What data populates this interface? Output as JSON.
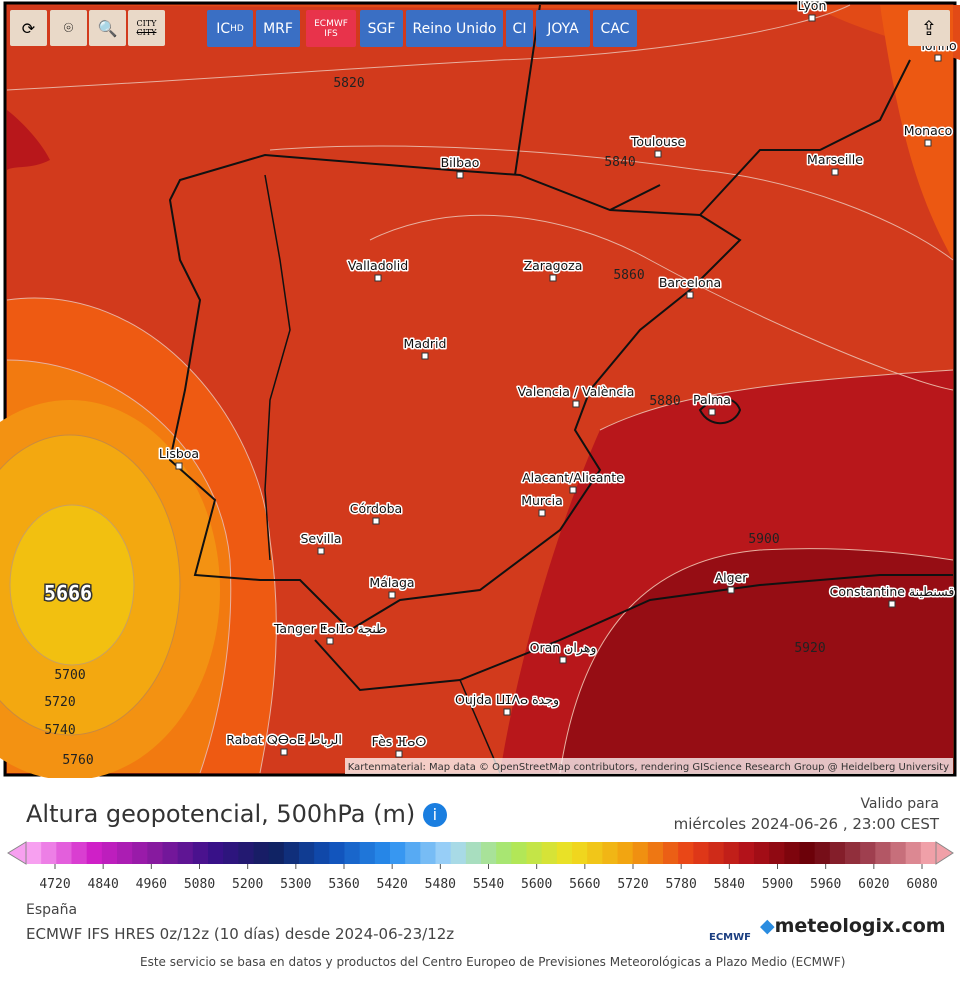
{
  "toolbar": {
    "tools": [
      "CITY",
      "CITY"
    ],
    "models": [
      {
        "label": "IC",
        "sub": "HD"
      },
      {
        "label": "MRF"
      },
      {
        "label": "ECMWF",
        "sub": "IFS"
      },
      {
        "label": "SGF"
      },
      {
        "label": "Reino Unido"
      },
      {
        "label": "CI"
      },
      {
        "label": "JOYA"
      },
      {
        "label": "CAC"
      }
    ]
  },
  "map": {
    "cities": [
      "Lyon",
      "Torino",
      "Monaco",
      "Toulouse",
      "Marseille",
      "Bilbao",
      "Valladolid",
      "Zaragoza",
      "Barcelona",
      "Madrid",
      "Valencia / València",
      "Palma",
      "Lisboa",
      "Alacant/Alicante",
      "Murcia",
      "Córdoba",
      "Sevilla",
      "Málaga",
      "Tanger ⵟⴰⵏⵊⴰ طنجة",
      "Oran وهران",
      "Alger",
      "Constantine قسنطينة",
      "Oujda ⵡⵊⴷⴰ وجدة",
      "Rabat ⵕⴱⴰⵟ الرباط",
      "Fès ⴼⴰⵙ"
    ],
    "contour_labels": [
      "5820",
      "5840",
      "5860",
      "5880",
      "5900",
      "5920",
      "5666",
      "5700",
      "5720",
      "5740",
      "5760"
    ],
    "attribution": "Kartenmaterial: Map data © OpenStreetMap contributors, rendering GIScience Research Group @ Heidelberg University"
  },
  "legend": {
    "title": "Altura geopotencial, 500hPa (m)",
    "valid_label": "Valido para",
    "valid_time": "miércoles 2024-06-26 , 23:00 CEST",
    "ticks": [
      "4720",
      "4840",
      "4960",
      "5080",
      "5200",
      "5300",
      "5360",
      "5420",
      "5480",
      "5540",
      "5600",
      "5660",
      "5720",
      "5780",
      "5840",
      "5900",
      "5960",
      "6020",
      "6080"
    ],
    "region": "España",
    "model_run": "ECMWF IFS HRES 0z/12z (10 días) desde 2024-06-23/12z",
    "logo_ecmwf": "ECMWF",
    "logo": "meteologix.com",
    "footer": "Este servicio se basa en datos y productos del Centro Europeo de Previsiones Meteorológicas a Plazo Medio (ECMWF)"
  }
}
